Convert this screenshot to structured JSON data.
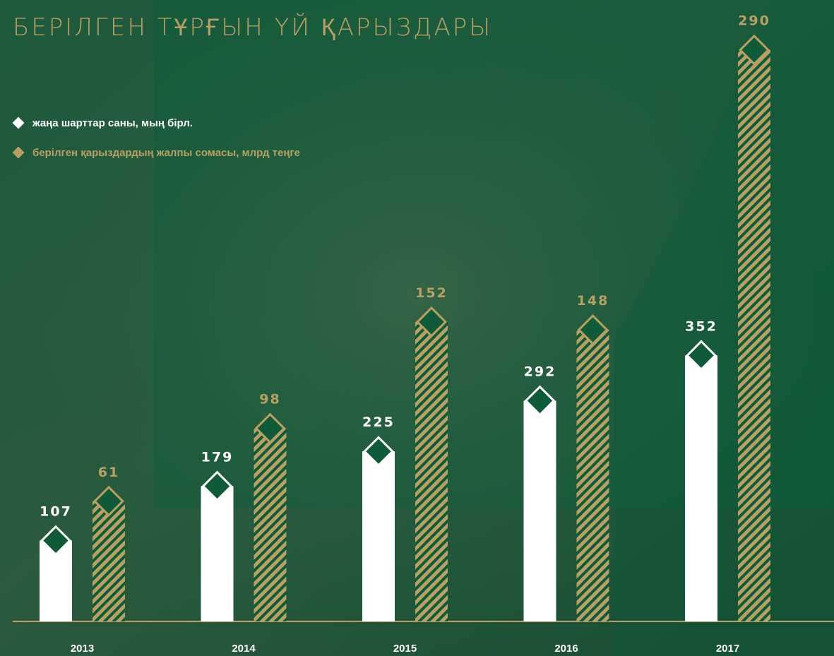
{
  "chart_data": {
    "type": "bar",
    "title": "БЕРІЛГЕН ТҰРҒЫН ҮЙ ҚАРЫЗДАРЫ",
    "categories": [
      "2013",
      "2014",
      "2015",
      "2016",
      "2017"
    ],
    "series": [
      {
        "name": "жаңа шарттар саны, мың бірл.",
        "color": "#ffffff",
        "values": [
          107,
          179,
          225,
          292,
          352
        ]
      },
      {
        "name": "берілген қарыздардың жалпы сомасы, млрд теңге",
        "color": "#b8a063",
        "values": [
          61,
          98,
          152,
          148,
          290
        ],
        "axis": "y2"
      }
    ],
    "ylim": [
      0,
      785
    ],
    "y2lim": [
      0,
      301
    ],
    "legend": "top-left"
  }
}
